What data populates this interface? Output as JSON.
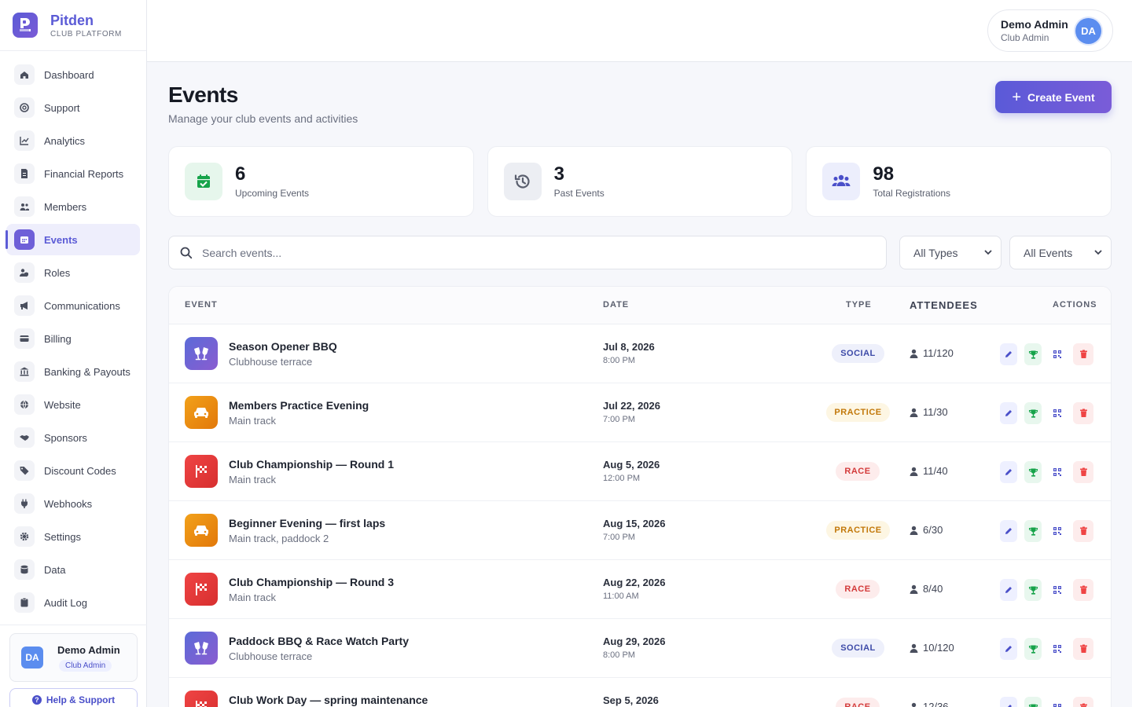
{
  "brand": {
    "name": "Pitden",
    "subtitle": "CLUB PLATFORM",
    "logo_letter": "P"
  },
  "sidebar": {
    "items": [
      {
        "label": "Dashboard",
        "icon": "home-icon"
      },
      {
        "label": "Support",
        "icon": "lifebuoy-icon"
      },
      {
        "label": "Analytics",
        "icon": "chart-line-icon"
      },
      {
        "label": "Financial Reports",
        "icon": "file-invoice-icon"
      },
      {
        "label": "Members",
        "icon": "users-icon"
      },
      {
        "label": "Events",
        "icon": "calendar-icon",
        "active": true
      },
      {
        "label": "Roles",
        "icon": "user-shield-icon"
      },
      {
        "label": "Communications",
        "icon": "megaphone-icon"
      },
      {
        "label": "Billing",
        "icon": "credit-card-icon"
      },
      {
        "label": "Banking & Payouts",
        "icon": "bank-icon"
      },
      {
        "label": "Website",
        "icon": "globe-icon"
      },
      {
        "label": "Sponsors",
        "icon": "handshake-icon"
      },
      {
        "label": "Discount Codes",
        "icon": "tag-icon"
      },
      {
        "label": "Webhooks",
        "icon": "plug-icon"
      },
      {
        "label": "Settings",
        "icon": "gear-icon"
      },
      {
        "label": "Data",
        "icon": "database-icon"
      },
      {
        "label": "Audit Log",
        "icon": "clipboard-icon"
      }
    ],
    "footer": {
      "initials": "DA",
      "name": "Demo Admin",
      "role": "Club Admin",
      "help_label": "Help & Support"
    }
  },
  "topbar": {
    "user_name": "Demo Admin",
    "user_role": "Club Admin",
    "initials": "DA"
  },
  "page": {
    "title": "Events",
    "subtitle": "Manage your club events and activities",
    "create_label": "Create Event"
  },
  "stats": [
    {
      "value": "6",
      "label": "Upcoming Events",
      "icon": "calendar-check-icon",
      "color": "#16a34a",
      "bg": "#e6f6ec"
    },
    {
      "value": "3",
      "label": "Past Events",
      "icon": "history-icon",
      "color": "#5a5f6e",
      "bg": "#eceef3"
    },
    {
      "value": "98",
      "label": "Total Registrations",
      "icon": "users-icon",
      "color": "#4a4fc9",
      "bg": "#eceefc"
    }
  ],
  "filters": {
    "search_placeholder": "Search events...",
    "type_select": "All Types",
    "status_select": "All Events"
  },
  "table": {
    "headers": {
      "event": "EVENT",
      "date": "DATE",
      "type": "TYPE",
      "attendees": "ATTENDEES",
      "actions": "ACTIONS"
    },
    "rows": [
      {
        "name": "Season Opener BBQ",
        "location": "Clubhouse terrace",
        "date": "Jul 8, 2026",
        "time": "8:00 PM",
        "type": "SOCIAL",
        "attendees": "11/120",
        "icon": "social-icon"
      },
      {
        "name": "Members Practice Evening",
        "location": "Main track",
        "date": "Jul 22, 2026",
        "time": "7:00 PM",
        "type": "PRACTICE",
        "attendees": "11/30",
        "icon": "car-icon"
      },
      {
        "name": "Club Championship — Round 1",
        "location": "Main track",
        "date": "Aug 5, 2026",
        "time": "12:00 PM",
        "type": "RACE",
        "attendees": "11/40",
        "icon": "checkered-flag-icon"
      },
      {
        "name": "Beginner Evening — first laps",
        "location": "Main track, paddock 2",
        "date": "Aug 15, 2026",
        "time": "7:00 PM",
        "type": "PRACTICE",
        "attendees": "6/30",
        "icon": "car-icon"
      },
      {
        "name": "Club Championship — Round 3",
        "location": "Main track",
        "date": "Aug 22, 2026",
        "time": "11:00 AM",
        "type": "RACE",
        "attendees": "8/40",
        "icon": "checkered-flag-icon"
      },
      {
        "name": "Paddock BBQ & Race Watch Party",
        "location": "Clubhouse terrace",
        "date": "Aug 29, 2026",
        "time": "8:00 PM",
        "type": "SOCIAL",
        "attendees": "10/120",
        "icon": "social-icon"
      },
      {
        "name": "Club Work Day — spring maintenance",
        "location": "",
        "date": "Sep 5, 2026",
        "time": "",
        "type": "RACE",
        "attendees": "12/36",
        "icon": "checkered-flag-icon"
      }
    ]
  },
  "colors": {
    "accent": "#5b5bd6",
    "social_bg": "#eef0fb",
    "social_fg": "#3d4aa8",
    "practice_bg": "#fdf6e3",
    "practice_fg": "#c2780a",
    "race_bg": "#fdecec",
    "race_fg": "#d33a3a"
  }
}
